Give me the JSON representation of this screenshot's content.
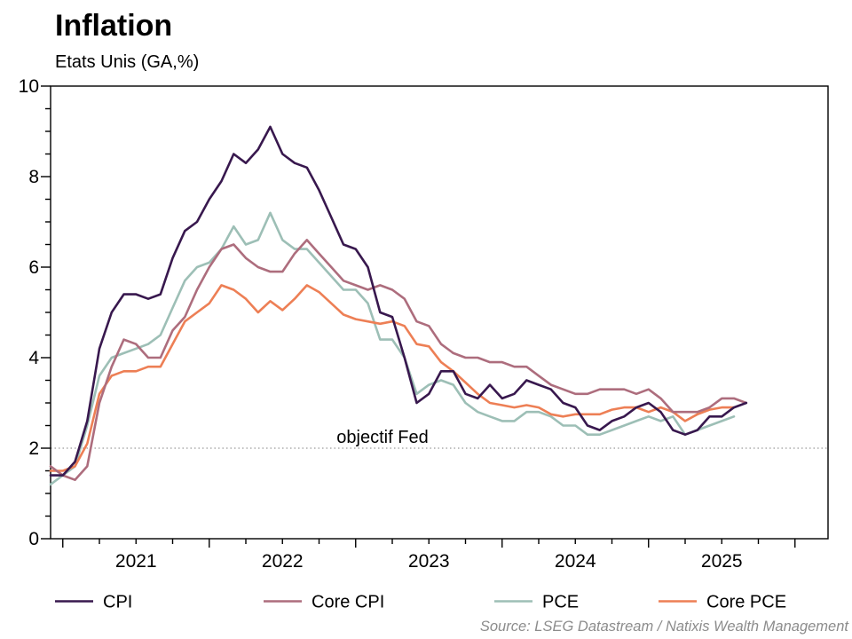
{
  "title": "Inflation",
  "subtitle": "Etats Unis (GA,%)",
  "annotation": "objectif Fed",
  "source": "Source: LSEG Datastream / Natixis Wealth Management",
  "colors": {
    "cpi": "#38184e",
    "core_cpi": "#ad6d7d",
    "pce": "#9dbfb6",
    "core_pce": "#ed7f55",
    "fed_target_line": "#999999",
    "axis": "#000000"
  },
  "chart_data": {
    "type": "line",
    "title": "Inflation",
    "subtitle": "Etats Unis (GA,%)",
    "x_freq": "monthly",
    "x_start": "2020-12",
    "x_year_labels": [
      "2021",
      "2022",
      "2023",
      "2024",
      "2025"
    ],
    "ylim": [
      0,
      10
    ],
    "y_ticks": [
      0,
      2,
      4,
      6,
      8,
      10
    ],
    "y_minor_step": 0.5,
    "x_minor_step_months": 3,
    "grid": "off",
    "legend_position": "bottom",
    "fed_target": {
      "value": 2,
      "label": "objectif Fed"
    },
    "series": [
      {
        "id": "cpi",
        "name": "CPI",
        "color": "#38184e",
        "x_end": "2025-09",
        "values": [
          1.4,
          1.4,
          1.7,
          2.6,
          4.2,
          5.0,
          5.4,
          5.4,
          5.3,
          5.4,
          6.2,
          6.8,
          7.0,
          7.5,
          7.9,
          8.5,
          8.3,
          8.6,
          9.1,
          8.5,
          8.3,
          8.2,
          7.7,
          7.1,
          6.5,
          6.4,
          6.0,
          5.0,
          4.9,
          4.0,
          3.0,
          3.2,
          3.7,
          3.7,
          3.2,
          3.1,
          3.4,
          3.1,
          3.2,
          3.5,
          3.4,
          3.3,
          3.0,
          2.9,
          2.5,
          2.4,
          2.6,
          2.7,
          2.9,
          3.0,
          2.8,
          2.4,
          2.3,
          2.4,
          2.7,
          2.7,
          2.9,
          3.0
        ]
      },
      {
        "id": "core_cpi",
        "name": "Core CPI",
        "color": "#ad6d7d",
        "x_end": "2025-09",
        "values": [
          1.6,
          1.4,
          1.3,
          1.6,
          3.0,
          3.8,
          4.4,
          4.3,
          4.0,
          4.0,
          4.6,
          4.9,
          5.5,
          6.0,
          6.4,
          6.5,
          6.2,
          6.0,
          5.9,
          5.9,
          6.3,
          6.6,
          6.3,
          6.0,
          5.7,
          5.6,
          5.5,
          5.6,
          5.5,
          5.3,
          4.8,
          4.7,
          4.3,
          4.1,
          4.0,
          4.0,
          3.9,
          3.9,
          3.8,
          3.8,
          3.6,
          3.4,
          3.3,
          3.2,
          3.2,
          3.3,
          3.3,
          3.3,
          3.2,
          3.3,
          3.1,
          2.8,
          2.8,
          2.8,
          2.9,
          3.1,
          3.1,
          3.0
        ]
      },
      {
        "id": "pce",
        "name": "PCE",
        "color": "#9dbfb6",
        "x_end": "2025-08",
        "values": [
          1.2,
          1.4,
          1.6,
          2.5,
          3.6,
          4.0,
          4.1,
          4.2,
          4.3,
          4.5,
          5.1,
          5.7,
          6.0,
          6.1,
          6.4,
          6.9,
          6.5,
          6.6,
          7.2,
          6.6,
          6.4,
          6.4,
          6.1,
          5.8,
          5.5,
          5.5,
          5.2,
          4.4,
          4.4,
          4.0,
          3.2,
          3.4,
          3.5,
          3.4,
          3.0,
          2.8,
          2.7,
          2.6,
          2.6,
          2.8,
          2.8,
          2.7,
          2.5,
          2.5,
          2.3,
          2.3,
          2.4,
          2.5,
          2.6,
          2.7,
          2.6,
          2.7,
          2.3,
          2.4,
          2.5,
          2.6,
          2.7
        ]
      },
      {
        "id": "core_pce",
        "name": "Core PCE",
        "color": "#ed7f55",
        "x_end": "2025-08",
        "values": [
          1.5,
          1.5,
          1.6,
          2.1,
          3.2,
          3.6,
          3.7,
          3.7,
          3.8,
          3.8,
          4.3,
          4.8,
          5.0,
          5.2,
          5.6,
          5.5,
          5.3,
          5.0,
          5.25,
          5.05,
          5.3,
          5.6,
          5.45,
          5.2,
          4.95,
          4.85,
          4.8,
          4.75,
          4.8,
          4.7,
          4.3,
          4.25,
          3.9,
          3.7,
          3.45,
          3.2,
          3.0,
          2.95,
          2.9,
          2.95,
          2.9,
          2.75,
          2.7,
          2.75,
          2.75,
          2.75,
          2.85,
          2.9,
          2.9,
          2.8,
          2.9,
          2.8,
          2.6,
          2.75,
          2.85,
          2.9,
          2.9
        ]
      }
    ]
  },
  "legend": {
    "items": [
      "CPI",
      "Core CPI",
      "PCE",
      "Core PCE"
    ]
  }
}
